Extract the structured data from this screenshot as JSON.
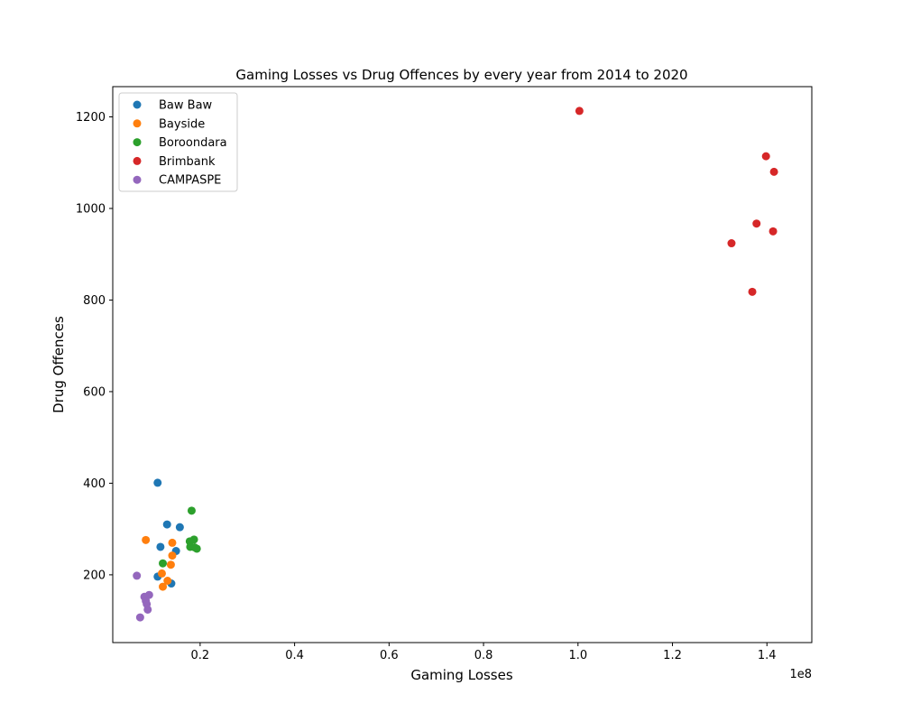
{
  "chart_data": {
    "type": "scatter",
    "title": "Gaming Losses vs Drug Offences by every year from 2014 to 2020",
    "xlabel": "Gaming Losses",
    "ylabel": "Drug Offences",
    "x_offset_text": "1e8",
    "xlim": [
      1500000,
      149500000
    ],
    "ylim": [
      52,
      1266
    ],
    "x_ticks": [
      {
        "value": 20000000,
        "label": "0.2"
      },
      {
        "value": 40000000,
        "label": "0.4"
      },
      {
        "value": 60000000,
        "label": "0.6"
      },
      {
        "value": 80000000,
        "label": "0.8"
      },
      {
        "value": 100000000,
        "label": "1.0"
      },
      {
        "value": 120000000,
        "label": "1.2"
      },
      {
        "value": 140000000,
        "label": "1.4"
      }
    ],
    "y_ticks": [
      {
        "value": 200,
        "label": "200"
      },
      {
        "value": 400,
        "label": "400"
      },
      {
        "value": 600,
        "label": "600"
      },
      {
        "value": 800,
        "label": "800"
      },
      {
        "value": 1000,
        "label": "1000"
      },
      {
        "value": 1200,
        "label": "1200"
      }
    ],
    "grid": false,
    "legend_position": "top-left",
    "series": [
      {
        "name": "Baw Baw",
        "color": "#1f77b4",
        "points": [
          {
            "x": 11000000,
            "y": 401
          },
          {
            "x": 13000000,
            "y": 310
          },
          {
            "x": 15700000,
            "y": 304
          },
          {
            "x": 11600000,
            "y": 261
          },
          {
            "x": 14900000,
            "y": 252
          },
          {
            "x": 11000000,
            "y": 196
          },
          {
            "x": 13900000,
            "y": 181
          }
        ]
      },
      {
        "name": "Bayside",
        "color": "#ff7f0e",
        "points": [
          {
            "x": 8500000,
            "y": 276
          },
          {
            "x": 14100000,
            "y": 270
          },
          {
            "x": 14100000,
            "y": 242
          },
          {
            "x": 13800000,
            "y": 222
          },
          {
            "x": 11900000,
            "y": 203
          },
          {
            "x": 13100000,
            "y": 187
          },
          {
            "x": 12100000,
            "y": 174
          }
        ]
      },
      {
        "name": "Boroondara",
        "color": "#2ca02c",
        "points": [
          {
            "x": 18200000,
            "y": 340
          },
          {
            "x": 18700000,
            "y": 277
          },
          {
            "x": 17800000,
            "y": 273
          },
          {
            "x": 17900000,
            "y": 261
          },
          {
            "x": 18800000,
            "y": 260
          },
          {
            "x": 19300000,
            "y": 257
          },
          {
            "x": 12100000,
            "y": 225
          }
        ]
      },
      {
        "name": "Brimbank",
        "color": "#d62728",
        "points": [
          {
            "x": 100300000,
            "y": 1213
          },
          {
            "x": 139800000,
            "y": 1114
          },
          {
            "x": 141500000,
            "y": 1080
          },
          {
            "x": 137800000,
            "y": 967
          },
          {
            "x": 141300000,
            "y": 950
          },
          {
            "x": 132500000,
            "y": 924
          },
          {
            "x": 136900000,
            "y": 818
          }
        ]
      },
      {
        "name": "CAMPASPE",
        "color": "#9467bd",
        "points": [
          {
            "x": 6600000,
            "y": 198
          },
          {
            "x": 9200000,
            "y": 156
          },
          {
            "x": 8200000,
            "y": 152
          },
          {
            "x": 8500000,
            "y": 143
          },
          {
            "x": 8700000,
            "y": 136
          },
          {
            "x": 8900000,
            "y": 124
          },
          {
            "x": 7300000,
            "y": 107
          }
        ]
      }
    ]
  }
}
